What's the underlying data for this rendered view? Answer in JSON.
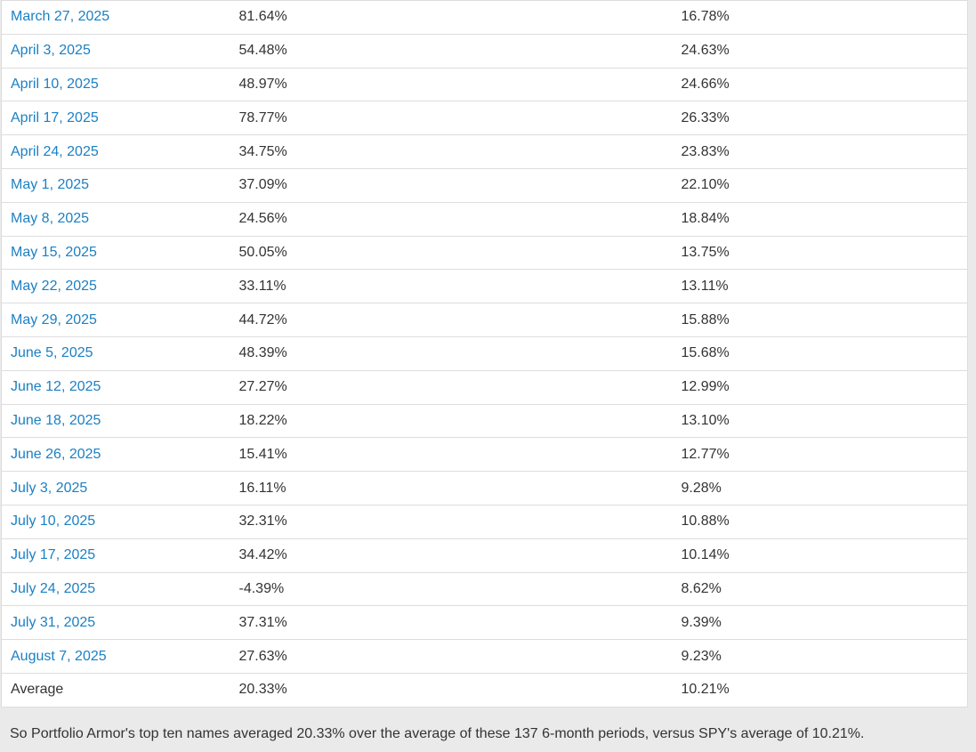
{
  "page": {
    "background_color": "#eaeaea",
    "link_color": "#1b80c4",
    "text_color": "#333333",
    "border_color": "#dddddd"
  },
  "table": {
    "rows": [
      {
        "date": "March 27, 2025",
        "top_ten_return": "81.64%",
        "spy_return": "16.78%"
      },
      {
        "date": "April 3, 2025",
        "top_ten_return": "54.48%",
        "spy_return": "24.63%"
      },
      {
        "date": "April 10, 2025",
        "top_ten_return": "48.97%",
        "spy_return": "24.66%"
      },
      {
        "date": "April 17, 2025",
        "top_ten_return": "78.77%",
        "spy_return": "26.33%"
      },
      {
        "date": "April 24, 2025",
        "top_ten_return": "34.75%",
        "spy_return": "23.83%"
      },
      {
        "date": "May 1, 2025",
        "top_ten_return": "37.09%",
        "spy_return": "22.10%"
      },
      {
        "date": "May 8, 2025",
        "top_ten_return": "24.56%",
        "spy_return": "18.84%"
      },
      {
        "date": "May 15, 2025",
        "top_ten_return": "50.05%",
        "spy_return": "13.75%"
      },
      {
        "date": "May 22, 2025",
        "top_ten_return": "33.11%",
        "spy_return": "13.11%"
      },
      {
        "date": "May 29, 2025",
        "top_ten_return": "44.72%",
        "spy_return": "15.88%"
      },
      {
        "date": "June 5, 2025",
        "top_ten_return": "48.39%",
        "spy_return": "15.68%"
      },
      {
        "date": "June 12, 2025",
        "top_ten_return": "27.27%",
        "spy_return": "12.99%"
      },
      {
        "date": "June 18, 2025",
        "top_ten_return": "18.22%",
        "spy_return": "13.10%"
      },
      {
        "date": "June 26, 2025",
        "top_ten_return": "15.41%",
        "spy_return": "12.77%"
      },
      {
        "date": "July 3, 2025",
        "top_ten_return": "16.11%",
        "spy_return": "9.28%"
      },
      {
        "date": "July 10, 2025",
        "top_ten_return": "32.31%",
        "spy_return": "10.88%"
      },
      {
        "date": "July 17, 2025",
        "top_ten_return": "34.42%",
        "spy_return": "10.14%"
      },
      {
        "date": "July 24, 2025",
        "top_ten_return": "-4.39%",
        "spy_return": "8.62%"
      },
      {
        "date": "July 31, 2025",
        "top_ten_return": "37.31%",
        "spy_return": "9.39%"
      },
      {
        "date": "August 7, 2025",
        "top_ten_return": "27.63%",
        "spy_return": "9.23%"
      }
    ],
    "average_row": {
      "label": "Average",
      "top_ten_return": "20.33%",
      "spy_return": "10.21%"
    }
  },
  "footer": {
    "text": "So Portfolio Armor's top ten names averaged 20.33% over the average of these 137 6-month periods, versus SPY's average of 10.21%."
  }
}
